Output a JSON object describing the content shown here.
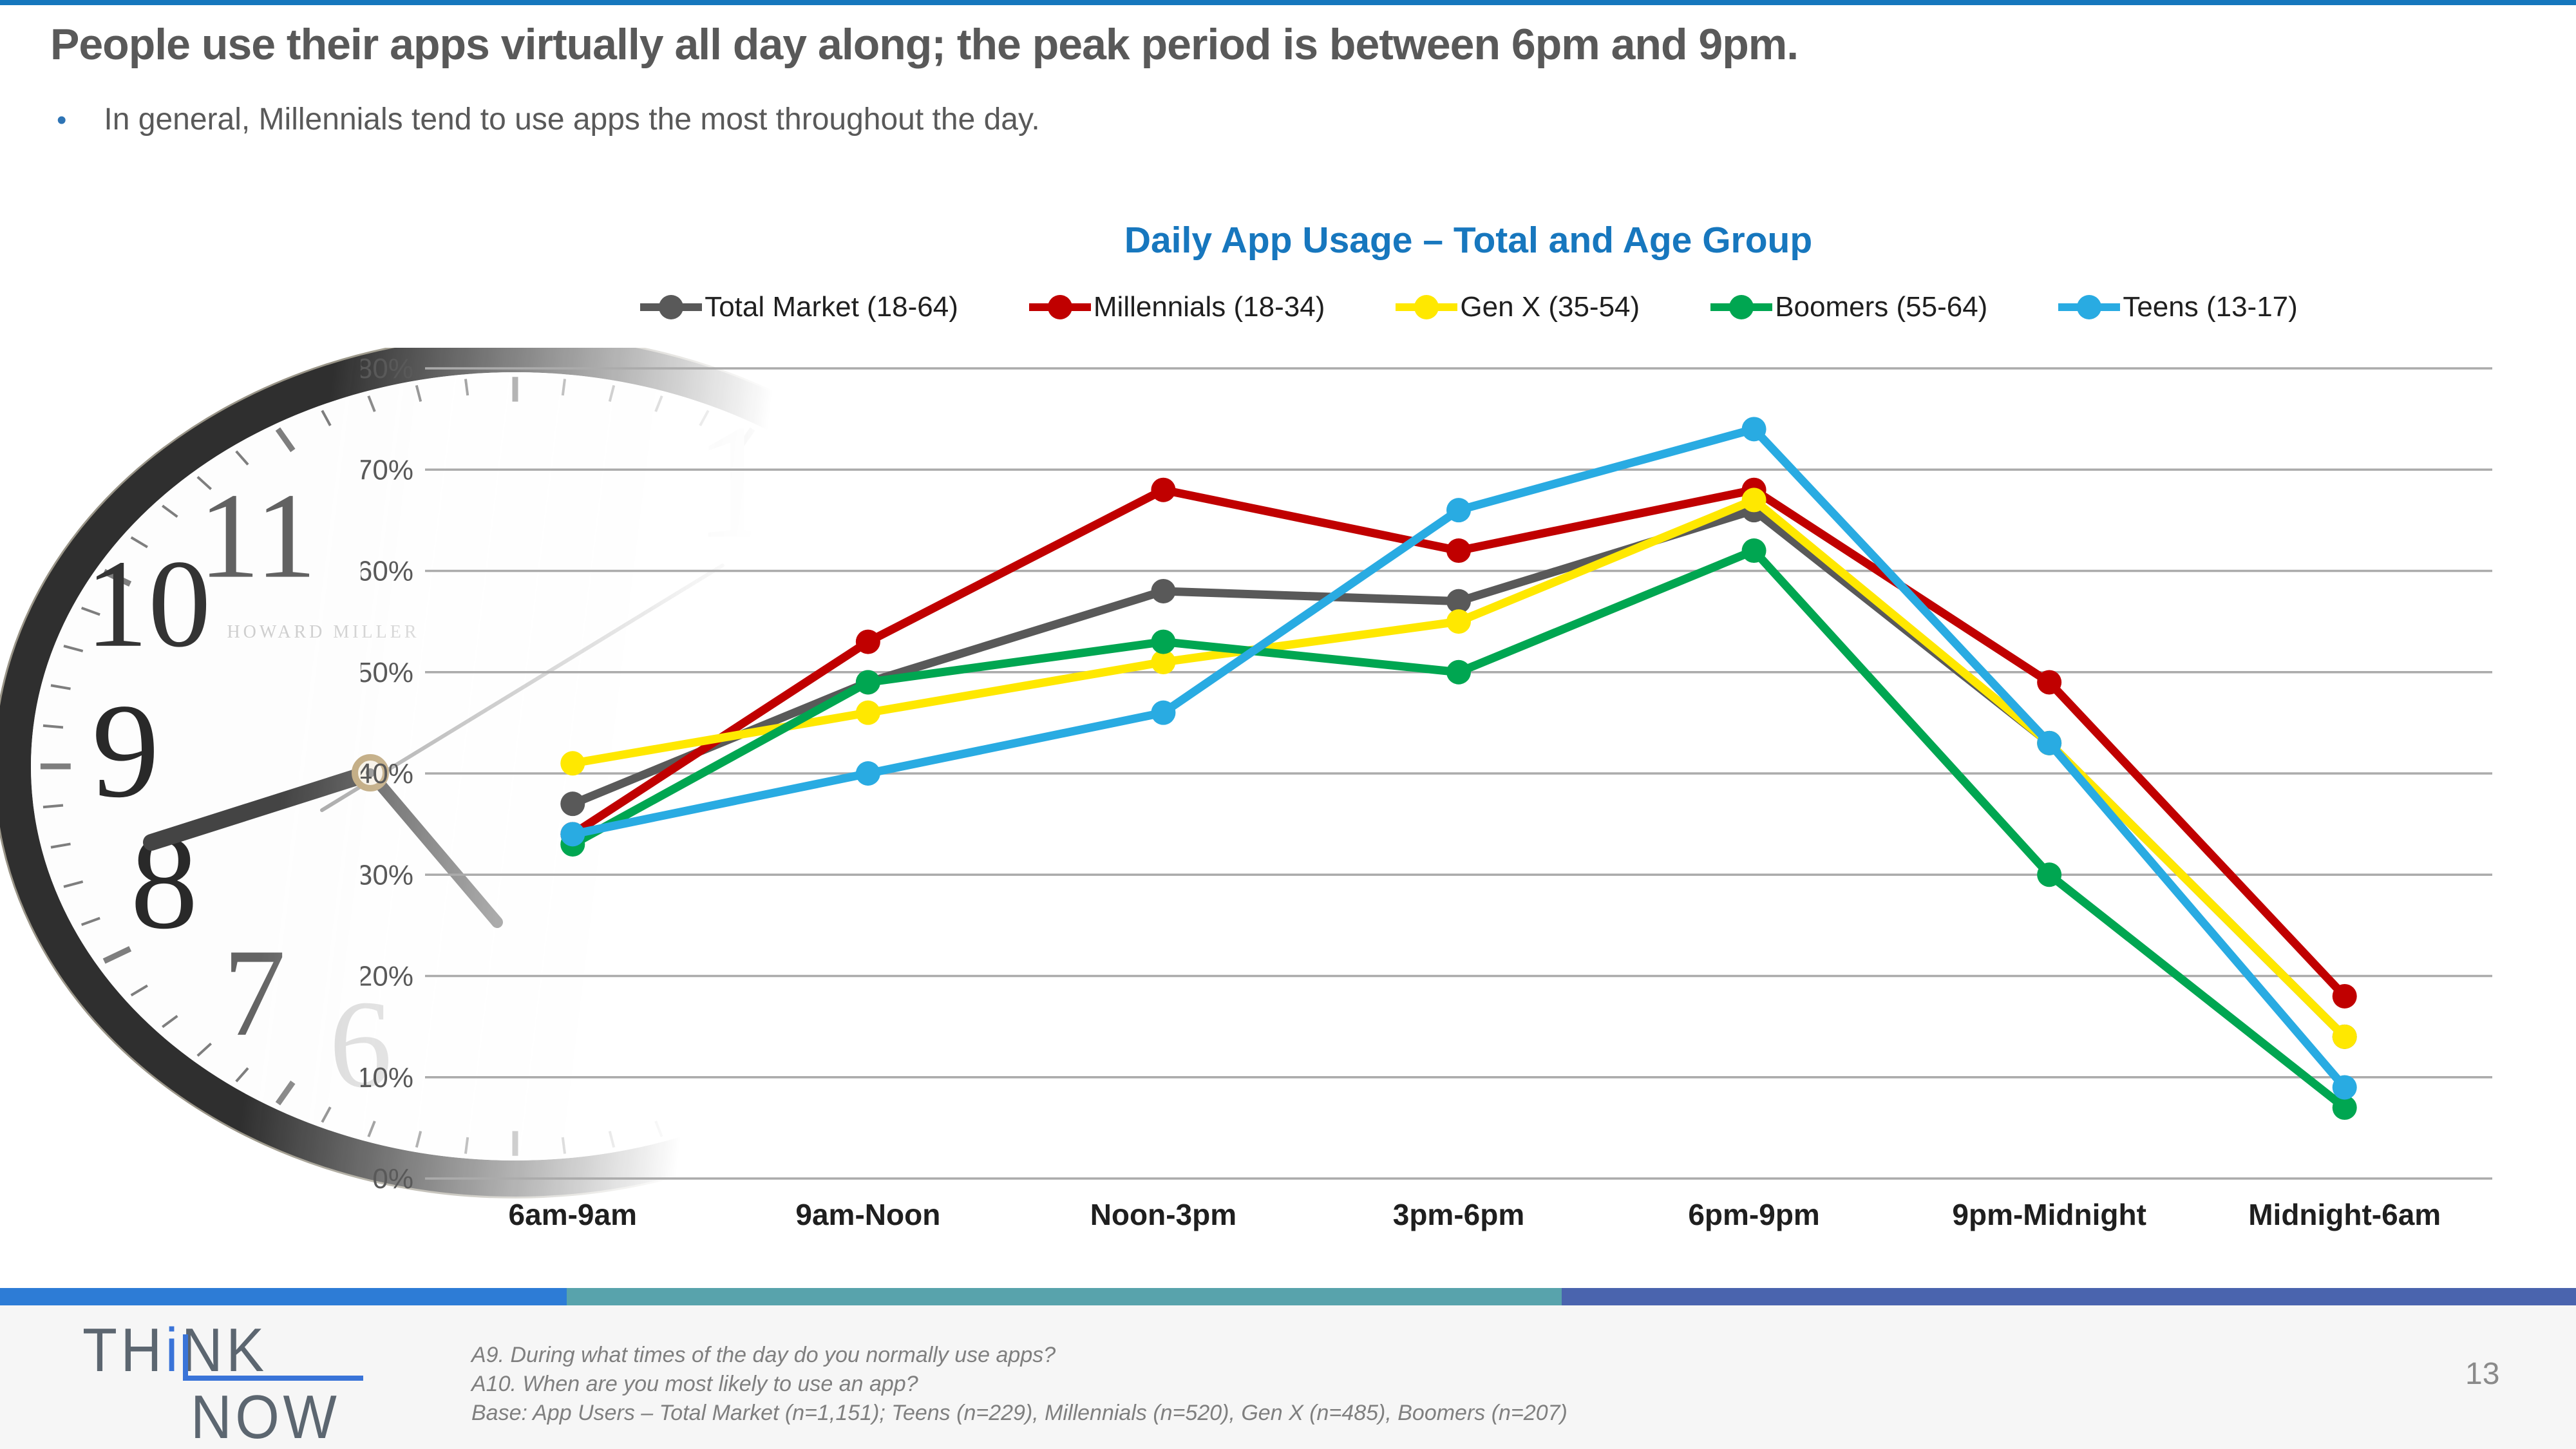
{
  "slide": {
    "title": "People use their apps virtually all day along; the peak period is between 6pm and 9pm.",
    "bullet": {
      "glyph": "•",
      "text": "In general, Millennials tend to use apps the most throughout the day."
    },
    "page_number": "13"
  },
  "chart_data": {
    "type": "line",
    "title": "Daily App Usage – Total and Age Group",
    "title_color": "#1777BE",
    "categories": [
      "6am-9am",
      "9am-Noon",
      "Noon-3pm",
      "3pm-6pm",
      "6pm-9pm",
      "9pm-Midnight",
      "Midnight-6am"
    ],
    "series": [
      {
        "name": "Total Market (18-64)",
        "color": "#595959",
        "values": [
          37,
          49,
          58,
          57,
          66,
          43,
          14
        ]
      },
      {
        "name": "Millennials (18-34)",
        "color": "#C00000",
        "values": [
          34,
          53,
          68,
          62,
          68,
          49,
          18
        ]
      },
      {
        "name": "Gen X (35-54)",
        "color": "#FFE800",
        "values": [
          41,
          46,
          51,
          55,
          67,
          43,
          14
        ]
      },
      {
        "name": "Boomers (55-64)",
        "color": "#00A651",
        "values": [
          33,
          49,
          53,
          50,
          62,
          30,
          7
        ]
      },
      {
        "name": "Teens (13-17)",
        "color": "#29ABE2",
        "values": [
          34,
          40,
          46,
          66,
          74,
          43,
          9
        ]
      }
    ],
    "ylim": [
      0,
      80
    ],
    "ytick_step": 10,
    "ytick_suffix": "%",
    "grid": true,
    "legend_position": "top",
    "gridline_color": "#ABABAB",
    "ytick_color": "#595959",
    "xtick_color": "#1f1f1f"
  },
  "footer": {
    "lines": [
      "A9. During what times of the day do you normally use apps?",
      "A10. When are you most likely to use an app?",
      "Base: App Users – Total Market (n=1,151); Teens (n=229), Millennials (n=520), Gen X (n=485), Boomers (n=207)"
    ]
  },
  "logo": {
    "part1": "TH",
    "accent": "i",
    "part2": "NK",
    "line2": "NOW"
  },
  "clock": {
    "brand": "HOWARD MILLER",
    "numerals": [
      "12",
      "11",
      "10",
      "9",
      "8",
      "7",
      "6"
    ]
  },
  "colors": {
    "top_border": "#1577BD",
    "accent_blue": "#2E74B5",
    "bar_segments": [
      "#2D7CD6",
      "#58A3AC",
      "#4A64AE"
    ]
  }
}
